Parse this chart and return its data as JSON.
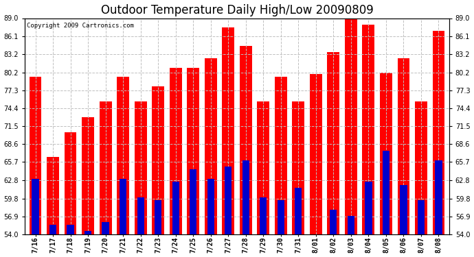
{
  "title": "Outdoor Temperature Daily High/Low 20090809",
  "copyright": "Copyright 2009 Cartronics.com",
  "dates": [
    "7/16",
    "7/17",
    "7/18",
    "7/19",
    "7/20",
    "7/21",
    "7/22",
    "7/23",
    "7/24",
    "7/25",
    "7/26",
    "7/27",
    "7/28",
    "7/29",
    "7/30",
    "7/31",
    "8/01",
    "8/02",
    "8/03",
    "8/04",
    "8/05",
    "8/06",
    "8/07",
    "8/08"
  ],
  "highs": [
    79.5,
    66.5,
    70.5,
    73.0,
    75.5,
    79.5,
    75.5,
    78.0,
    81.0,
    81.0,
    82.5,
    87.5,
    84.5,
    75.5,
    79.5,
    75.5,
    80.0,
    83.5,
    89.0,
    88.0,
    80.2,
    82.5,
    75.5,
    87.0
  ],
  "lows": [
    63.0,
    55.5,
    55.5,
    54.5,
    56.0,
    63.0,
    60.0,
    59.5,
    62.5,
    64.5,
    63.0,
    65.0,
    66.0,
    60.0,
    59.5,
    61.5,
    54.0,
    58.0,
    57.0,
    62.5,
    67.5,
    62.0,
    59.5,
    66.0
  ],
  "high_color": "#ff0000",
  "low_color": "#0000cc",
  "bg_color": "#ffffff",
  "grid_color": "#c0c0c0",
  "ylim": [
    54.0,
    89.0
  ],
  "yticks": [
    54.0,
    56.9,
    59.8,
    62.8,
    65.7,
    68.6,
    71.5,
    74.4,
    77.3,
    80.2,
    83.2,
    86.1,
    89.0
  ],
  "bar_width": 0.7,
  "blue_bar_width": 0.4,
  "title_fontsize": 12,
  "tick_fontsize": 7,
  "copyright_fontsize": 6.5
}
